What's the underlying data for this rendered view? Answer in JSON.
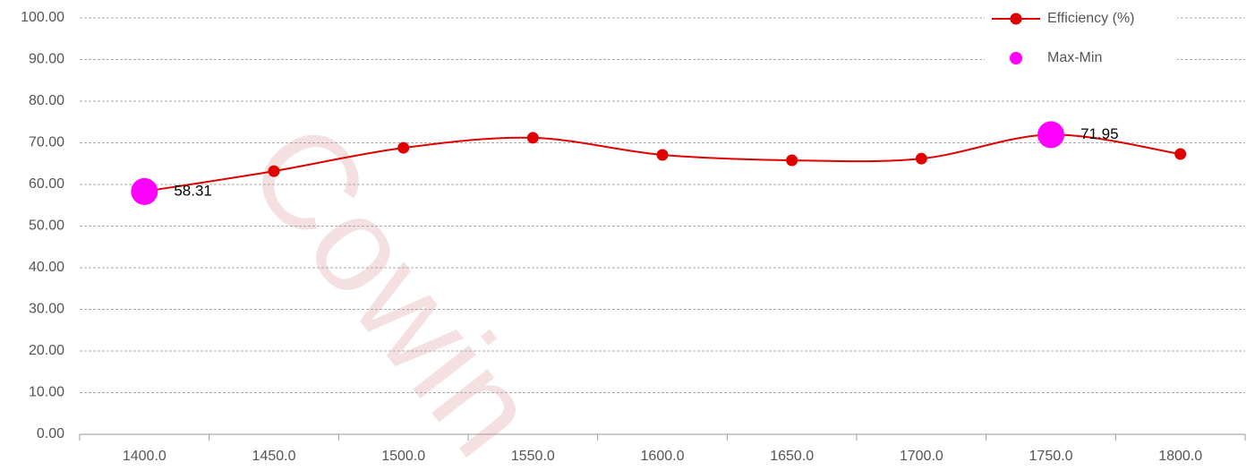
{
  "chart_data": {
    "type": "line",
    "watermark": "Cowin",
    "categories": [
      "1400.0",
      "1450.0",
      "1500.0",
      "1550.0",
      "1600.0",
      "1650.0",
      "1700.0",
      "1750.0",
      "1800.0"
    ],
    "series": [
      {
        "name": "Efficiency (%)",
        "color": "#e00000",
        "values": [
          58.31,
          63.2,
          68.8,
          71.2,
          67.1,
          65.8,
          66.2,
          71.95,
          67.3
        ]
      },
      {
        "name": "Max-Min",
        "color": "#ff00ff",
        "values": [
          58.31,
          null,
          null,
          null,
          null,
          null,
          null,
          71.95,
          null
        ]
      }
    ],
    "ylim": [
      0,
      100
    ],
    "yticks": [
      {
        "value": 0,
        "label": "0.00"
      },
      {
        "value": 10,
        "label": "10.00"
      },
      {
        "value": 20,
        "label": "20.00"
      },
      {
        "value": 30,
        "label": "30.00"
      },
      {
        "value": 40,
        "label": "40.00"
      },
      {
        "value": 50,
        "label": "50.00"
      },
      {
        "value": 60,
        "label": "60.00"
      },
      {
        "value": 70,
        "label": "70.00"
      },
      {
        "value": 80,
        "label": "80.00"
      },
      {
        "value": 90,
        "label": "90.00"
      },
      {
        "value": 100,
        "label": "100.00"
      }
    ],
    "grid": true,
    "legend": "top-right"
  }
}
